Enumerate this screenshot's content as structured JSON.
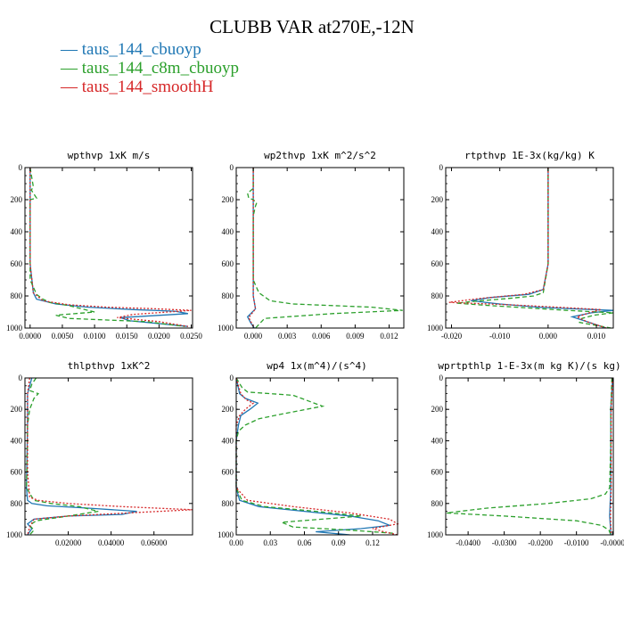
{
  "title": "CLUBB VAR at270E,-12N",
  "legend": [
    {
      "label": "taus_144_cbuoyp",
      "color": "#1f77b4",
      "dash": "solid"
    },
    {
      "label": "taus_144_c8m_cbuoyp",
      "color": "#2ca02c",
      "dash": "dashed"
    },
    {
      "label": "taus_144_smoothH",
      "color": "#d62728",
      "dash": "dotted"
    }
  ],
  "chart_data": [
    {
      "type": "line",
      "title": "wpthvp  1xK m/s",
      "xlim": [
        -0.0008,
        0.0252
      ],
      "ylim": [
        0,
        1000
      ],
      "xticks": [
        0.0,
        0.005,
        0.01,
        0.015,
        0.02,
        0.025
      ],
      "xtick_labels": [
        "0.0000",
        "0.0050",
        "0.0100",
        "0.0150",
        "0.0200",
        "0.0250"
      ],
      "yticks": [
        0,
        200,
        400,
        600,
        800,
        1000
      ],
      "series": [
        {
          "name": "taus_144_cbuoyp",
          "x": [
            0,
            0,
            0,
            0,
            0.0005,
            0.001,
            0.004,
            0.009,
            0.016,
            0.0225,
            0.0245,
            0.014,
            0.0155,
            0.0245
          ],
          "y": [
            0,
            200,
            400,
            600,
            780,
            820,
            850,
            870,
            885,
            895,
            910,
            935,
            955,
            990
          ]
        },
        {
          "name": "taus_144_c8m_cbuoyp",
          "x": [
            0,
            0.0005,
            0.0002,
            0.001,
            0,
            0,
            0,
            0,
            0.001,
            0.002,
            0.003,
            0.006,
            0.01,
            0.004,
            0.006,
            0.018,
            0.024
          ],
          "y": [
            0,
            120,
            140,
            190,
            200,
            230,
            400,
            700,
            790,
            820,
            840,
            860,
            900,
            920,
            940,
            960,
            990
          ]
        },
        {
          "name": "taus_144_smoothH",
          "x": [
            0,
            0,
            0,
            0,
            0.0005,
            0.002,
            0.006,
            0.012,
            0.0195,
            0.025,
            0.016,
            0.0135,
            0.02,
            0.0245
          ],
          "y": [
            0,
            200,
            400,
            600,
            780,
            830,
            855,
            870,
            880,
            890,
            915,
            935,
            960,
            990
          ]
        }
      ]
    },
    {
      "type": "line",
      "title": "wp2thvp  1xK m^2/s^2",
      "xlim": [
        -0.0015,
        0.0133
      ],
      "ylim": [
        0,
        1000
      ],
      "xticks": [
        0.0,
        0.003,
        0.006,
        0.009,
        0.012
      ],
      "xtick_labels": [
        "0.000",
        "0.003",
        "0.006",
        "0.009",
        "0.012"
      ],
      "yticks": [
        0,
        200,
        400,
        600,
        800,
        1000
      ],
      "series": [
        {
          "name": "taus_144_cbuoyp",
          "x": [
            0,
            0,
            0,
            0,
            0,
            0.0002,
            -0.0005,
            -0.0002,
            0.0001
          ],
          "y": [
            0,
            200,
            400,
            600,
            800,
            880,
            930,
            970,
            1000
          ]
        },
        {
          "name": "taus_144_c8m_cbuoyp",
          "x": [
            0,
            0,
            -0.0005,
            -0.0004,
            0,
            0.0003,
            0.0002,
            0,
            0,
            0.0005,
            0.0015,
            0.0035,
            0.0105,
            0.0132,
            0.007,
            0.001,
            0.0002
          ],
          "y": [
            0,
            130,
            160,
            190,
            200,
            220,
            240,
            300,
            700,
            780,
            830,
            850,
            870,
            890,
            910,
            940,
            1000
          ]
        },
        {
          "name": "taus_144_smoothH",
          "x": [
            0,
            0,
            0,
            0,
            0,
            0.0002,
            -0.0004,
            -0.0001,
            0.0001
          ],
          "y": [
            0,
            200,
            400,
            600,
            800,
            880,
            935,
            975,
            1000
          ]
        }
      ]
    },
    {
      "type": "line",
      "title": "rtpthvp  1E-3x(kg/kg) K",
      "xlim": [
        -0.0212,
        0.0135
      ],
      "ylim": [
        0,
        1000
      ],
      "xticks": [
        -0.02,
        -0.01,
        0.0,
        0.01
      ],
      "xtick_labels": [
        "-0.020",
        "-0.010",
        "0.000",
        "0.010"
      ],
      "yticks": [
        0,
        200,
        400,
        600,
        800,
        1000
      ],
      "series": [
        {
          "name": "taus_144_cbuoyp",
          "x": [
            0,
            0,
            0,
            0,
            -0.001,
            -0.004,
            -0.012,
            -0.016,
            -0.01,
            -0.002,
            0.005,
            0.0135,
            0.009,
            0.005,
            0.008,
            0.012
          ],
          "y": [
            0,
            200,
            400,
            600,
            760,
            790,
            810,
            830,
            850,
            870,
            880,
            890,
            905,
            930,
            960,
            1000
          ]
        },
        {
          "name": "taus_144_c8m_cbuoyp",
          "x": [
            0,
            0,
            0,
            0,
            -0.001,
            -0.003,
            -0.008,
            -0.014,
            -0.019,
            -0.012,
            -0.004,
            0.004,
            0.0135,
            0.0095,
            0.007,
            0.0065,
            0.013
          ],
          "y": [
            0,
            200,
            400,
            600,
            780,
            800,
            815,
            830,
            845,
            860,
            875,
            890,
            905,
            920,
            940,
            965,
            1000
          ]
        },
        {
          "name": "taus_144_smoothH",
          "x": [
            0,
            0,
            0,
            0,
            -0.001,
            -0.005,
            -0.014,
            -0.0205,
            -0.008,
            0.002,
            0.011,
            0.009,
            0.006,
            0.008,
            0.012
          ],
          "y": [
            0,
            200,
            400,
            600,
            760,
            790,
            815,
            840,
            855,
            870,
            885,
            900,
            930,
            960,
            1000
          ]
        }
      ]
    },
    {
      "type": "line",
      "title": "thlpthvp  1xK^2",
      "xlim": [
        -0.0002,
        0.078
      ],
      "ylim": [
        0,
        1000
      ],
      "xticks": [
        0.02,
        0.04,
        0.06
      ],
      "xtick_labels": [
        "0.02000",
        "0.04000",
        "0.06000"
      ],
      "yticks": [
        0,
        200,
        400,
        600,
        800,
        1000
      ],
      "series": [
        {
          "name": "taus_144_cbuoyp",
          "x": [
            0.003,
            0.002,
            0.001,
            0.001,
            0.0005,
            0.001,
            0.003,
            0.01,
            0.03,
            0.052,
            0.045,
            0.02,
            0.004,
            0.001,
            0.003,
            0.001
          ],
          "y": [
            0,
            50,
            100,
            300,
            700,
            780,
            800,
            815,
            830,
            850,
            870,
            880,
            900,
            930,
            960,
            1000
          ]
        },
        {
          "name": "taus_144_c8m_cbuoyp",
          "x": [
            0.005,
            0.003,
            0.002,
            0.006,
            0.004,
            0.002,
            0.001,
            0.001,
            0.0005,
            0.004,
            0.012,
            0.025,
            0.034,
            0.02,
            0.005,
            0.002,
            0.004,
            0.002
          ],
          "y": [
            0,
            40,
            80,
            100,
            130,
            200,
            300,
            400,
            700,
            780,
            800,
            820,
            850,
            880,
            910,
            940,
            970,
            1000
          ]
        },
        {
          "name": "taus_144_smoothH",
          "x": [
            0.002,
            0.001,
            0.001,
            0.001,
            0.002,
            0.006,
            0.02,
            0.045,
            0.078,
            0.048,
            0.02,
            0.004,
            0.002,
            0.001
          ],
          "y": [
            0,
            100,
            300,
            600,
            760,
            780,
            800,
            820,
            840,
            860,
            880,
            900,
            950,
            1000
          ]
        }
      ]
    },
    {
      "type": "line",
      "title": "wp4  1x(m^4)/(s^4)",
      "xlim": [
        0.0,
        0.142
      ],
      "ylim": [
        0,
        1000
      ],
      "xticks": [
        0.0,
        0.03,
        0.06,
        0.09,
        0.12
      ],
      "xtick_labels": [
        "0.00",
        "0.03",
        "0.06",
        "0.09",
        "0.12"
      ],
      "yticks": [
        0,
        200,
        400,
        600,
        800,
        1000
      ],
      "series": [
        {
          "name": "taus_144_cbuoyp",
          "x": [
            0,
            0.003,
            0.008,
            0.019,
            0.012,
            0.004,
            0.002,
            0,
            0,
            0.003,
            0.02,
            0.06,
            0.1,
            0.125,
            0.135,
            0.11,
            0.07,
            0.1
          ],
          "y": [
            0,
            100,
            130,
            160,
            200,
            240,
            300,
            400,
            700,
            780,
            820,
            850,
            880,
            910,
            940,
            960,
            980,
            1000
          ]
        },
        {
          "name": "taus_144_c8m_cbuoyp",
          "x": [
            0,
            0.005,
            0.01,
            0.05,
            0.076,
            0.04,
            0.02,
            0.008,
            0.002,
            0,
            0,
            0.005,
            0.025,
            0.07,
            0.11,
            0.04,
            0.05,
            0.1,
            0.138
          ],
          "y": [
            0,
            60,
            90,
            110,
            180,
            230,
            260,
            300,
            340,
            400,
            700,
            780,
            820,
            850,
            880,
            920,
            950,
            970,
            990
          ]
        },
        {
          "name": "taus_144_smoothH",
          "x": [
            0,
            0.004,
            0.009,
            0.015,
            0.008,
            0.003,
            0,
            0,
            0.01,
            0.05,
            0.1,
            0.135,
            0.142,
            0.12,
            0.13,
            0.142
          ],
          "y": [
            0,
            100,
            140,
            160,
            200,
            240,
            300,
            700,
            780,
            820,
            860,
            900,
            930,
            960,
            980,
            1000
          ]
        }
      ]
    },
    {
      "type": "line",
      "title": "wprtpthlp  1-E-3x(m kg K)/(s kg)",
      "xlim": [
        -0.0462,
        0.0002
      ],
      "ylim": [
        0,
        1000
      ],
      "xticks": [
        -0.04,
        -0.03,
        -0.02,
        -0.01,
        0.0
      ],
      "xtick_labels": [
        "-0.0400",
        "-0.0300",
        "-0.0200",
        "-0.0100",
        "-0.0000"
      ],
      "yticks": [
        0,
        200,
        400,
        600,
        800,
        1000
      ],
      "series": [
        {
          "name": "taus_144_cbuoyp",
          "x": [
            0,
            -0.0005,
            -0.0005,
            -0.0005,
            -0.0008,
            -0.0006,
            -0.0005
          ],
          "y": [
            0,
            200,
            400,
            700,
            880,
            950,
            1000
          ]
        },
        {
          "name": "taus_144_c8m_cbuoyp",
          "x": [
            -0.0002,
            -0.0005,
            -0.0005,
            -0.0008,
            -0.002,
            -0.006,
            -0.018,
            -0.035,
            -0.046,
            -0.03,
            -0.01,
            -0.003,
            -0.001,
            -0.0005
          ],
          "y": [
            0,
            200,
            400,
            700,
            740,
            770,
            800,
            830,
            860,
            880,
            910,
            940,
            970,
            1000
          ]
        },
        {
          "name": "taus_144_smoothH",
          "x": [
            0,
            -0.0004,
            -0.0004,
            -0.0004,
            -0.0006,
            -0.0005,
            -0.0004
          ],
          "y": [
            0,
            200,
            400,
            700,
            880,
            950,
            1000
          ]
        }
      ]
    }
  ]
}
